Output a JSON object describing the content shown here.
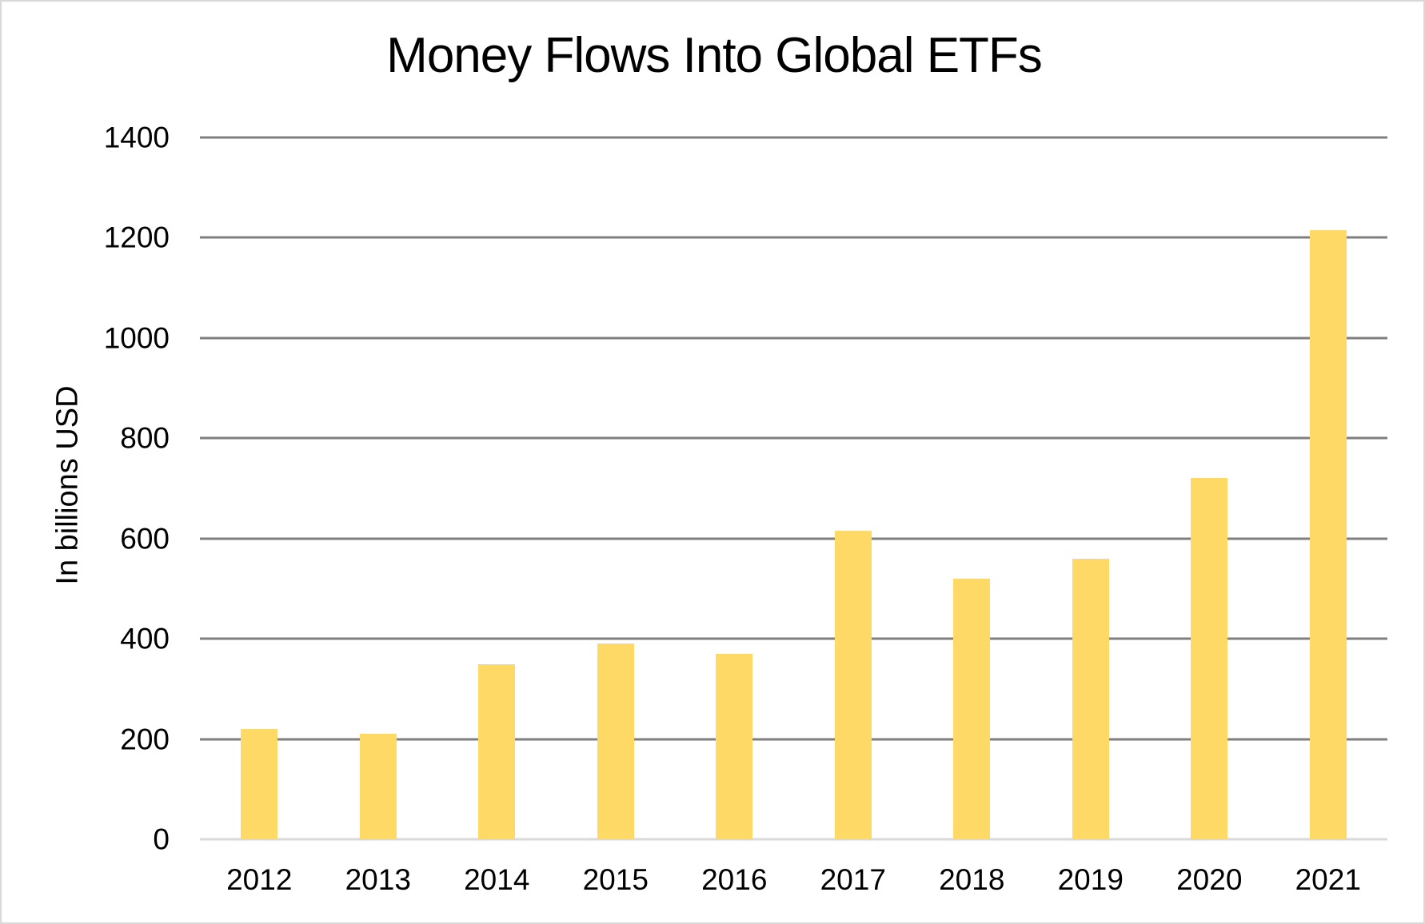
{
  "chart_data": {
    "type": "bar",
    "title": "Money Flows Into Global ETFs",
    "ylabel": "In billions USD",
    "xlabel": "",
    "categories": [
      "2012",
      "2013",
      "2014",
      "2015",
      "2016",
      "2017",
      "2018",
      "2019",
      "2020",
      "2021"
    ],
    "values": [
      220,
      210,
      350,
      390,
      370,
      615,
      520,
      560,
      720,
      1215
    ],
    "ylim": [
      0,
      1400
    ],
    "yticks": [
      0,
      200,
      400,
      600,
      800,
      1000,
      1200,
      1400
    ],
    "grid": true,
    "legend": false,
    "bar_color": "#FFD966",
    "gridline_color": "#7F7F7F",
    "baseline_color": "#D9D9D9",
    "text_color": "#000000",
    "background_color": "#FFFFFF",
    "border_color": "#D9D9D9"
  }
}
